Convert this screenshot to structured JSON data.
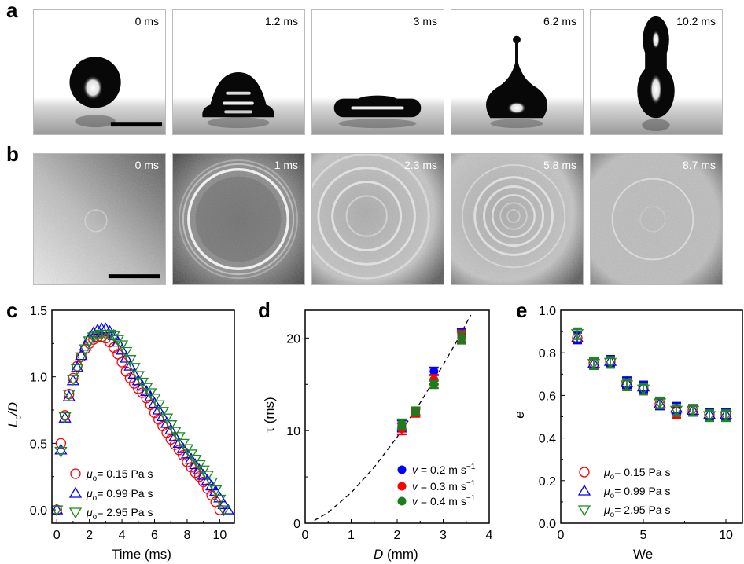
{
  "panel_letters": {
    "a": "a",
    "b": "b",
    "c": "c",
    "d": "d",
    "e": "e"
  },
  "photos": {
    "row_a": {
      "times": [
        "0 ms",
        "1.2 ms",
        "3 ms",
        "6.2 ms",
        "10.2 ms"
      ],
      "scale_bar": true
    },
    "row_b": {
      "times": [
        "0 ms",
        "1 ms",
        "2.3 ms",
        "5.8 ms",
        "8.7 ms"
      ],
      "scale_bar": true
    }
  },
  "chart_data": [
    {
      "type": "scatter",
      "panel": "c",
      "xlabel": "Time (ms)",
      "ylabel": {
        "main": "L",
        "sub": "c",
        "rest": "/D"
      },
      "xlim": [
        -0.3,
        10.9
      ],
      "ylim": [
        -0.1,
        1.5
      ],
      "xticks": [
        0,
        2,
        4,
        6,
        8,
        10
      ],
      "xtick_labels": [
        "0",
        "2",
        "4",
        "6",
        "8",
        "10"
      ],
      "yticks": [
        0,
        0.5,
        1.0,
        1.5
      ],
      "ytick_labels": [
        "0.0",
        "0.5",
        "1.0",
        "1.5"
      ],
      "grid": false,
      "legend_position": "bottom-left",
      "series": [
        {
          "name_symbol": "μ",
          "name_sub": "o",
          "name_rest": "= 0.15 Pa s",
          "marker": "circle",
          "color": "#ff0000",
          "x": [
            0,
            0.25,
            0.5,
            0.75,
            1,
            1.25,
            1.5,
            1.75,
            2,
            2.25,
            2.5,
            2.75,
            3,
            3.25,
            3.5,
            3.75,
            4,
            4.25,
            4.5,
            4.75,
            5,
            5.25,
            5.5,
            5.75,
            6,
            6.25,
            6.5,
            6.75,
            7,
            7.25,
            7.5,
            7.75,
            8,
            8.25,
            8.5,
            8.75,
            9,
            9.25,
            9.5,
            9.75,
            10
          ],
          "y": [
            0,
            0.5,
            0.71,
            0.87,
            0.99,
            1.08,
            1.15,
            1.21,
            1.25,
            1.28,
            1.3,
            1.3,
            1.29,
            1.26,
            1.22,
            1.17,
            1.11,
            1.04,
            0.99,
            0.95,
            0.91,
            0.88,
            0.84,
            0.79,
            0.73,
            0.68,
            0.63,
            0.58,
            0.53,
            0.49,
            0.45,
            0.41,
            0.36,
            0.32,
            0.28,
            0.25,
            0.21,
            0.16,
            0.11,
            0.06,
            0.0
          ]
        },
        {
          "name_symbol": "μ",
          "name_sub": "o",
          "name_rest": "= 0.99 Pa s",
          "marker": "triangle-up",
          "color": "#0000ff",
          "x": [
            0,
            0.25,
            0.5,
            0.75,
            1,
            1.25,
            1.5,
            1.75,
            2,
            2.25,
            2.5,
            2.75,
            3,
            3.25,
            3.5,
            3.75,
            4,
            4.25,
            4.5,
            4.75,
            5,
            5.25,
            5.5,
            5.75,
            6,
            6.25,
            6.5,
            6.75,
            7,
            7.25,
            7.5,
            7.75,
            8,
            8.25,
            8.5,
            8.75,
            9,
            9.25,
            9.5,
            9.75,
            10,
            10.25,
            10.5
          ],
          "y": [
            0,
            0.45,
            0.69,
            0.85,
            0.97,
            1.07,
            1.16,
            1.23,
            1.29,
            1.33,
            1.35,
            1.36,
            1.36,
            1.34,
            1.31,
            1.26,
            1.2,
            1.14,
            1.08,
            1.02,
            0.97,
            0.93,
            0.89,
            0.85,
            0.8,
            0.75,
            0.7,
            0.65,
            0.6,
            0.55,
            0.5,
            0.46,
            0.42,
            0.38,
            0.34,
            0.3,
            0.26,
            0.22,
            0.18,
            0.14,
            0.09,
            0.04,
            0.0
          ]
        },
        {
          "name_symbol": "μ",
          "name_sub": "o",
          "name_rest": "= 2.95 Pa s",
          "marker": "triangle-down",
          "color": "#1a8a1a",
          "x": [
            0,
            0.25,
            0.5,
            0.75,
            1,
            1.25,
            1.5,
            1.75,
            2,
            2.25,
            2.5,
            2.75,
            3,
            3.25,
            3.5,
            3.75,
            4,
            4.25,
            4.5,
            4.75,
            5,
            5.25,
            5.5,
            5.75,
            6,
            6.25,
            6.5,
            6.75,
            7,
            7.25,
            7.5,
            7.75,
            8,
            8.25,
            8.5,
            8.75,
            9,
            9.25,
            9.5,
            9.75,
            10,
            10.25
          ],
          "y": [
            0,
            0.44,
            0.7,
            0.87,
            0.98,
            1.06,
            1.15,
            1.21,
            1.27,
            1.3,
            1.31,
            1.32,
            1.32,
            1.32,
            1.31,
            1.28,
            1.24,
            1.19,
            1.13,
            1.07,
            1.01,
            0.96,
            0.92,
            0.88,
            0.84,
            0.79,
            0.74,
            0.69,
            0.64,
            0.59,
            0.55,
            0.5,
            0.46,
            0.42,
            0.38,
            0.34,
            0.3,
            0.26,
            0.21,
            0.15,
            0.08,
            0.0
          ]
        }
      ]
    },
    {
      "type": "scatter",
      "panel": "d",
      "xlabel": {
        "var": "D",
        "rest": " (mm)"
      },
      "ylabel": "τ (ms)",
      "xlim": [
        0,
        4
      ],
      "ylim": [
        0,
        23
      ],
      "xticks": [
        0,
        1,
        2,
        3,
        4
      ],
      "xtick_labels": [
        "0",
        "1",
        "2",
        "3",
        "4"
      ],
      "yticks": [
        0,
        10,
        20
      ],
      "ytick_labels": [
        "0",
        "10",
        "20"
      ],
      "grid": false,
      "legend_position": "bottom-right",
      "fit": {
        "style": "dashed",
        "color": "#000000",
        "x": [
          0.2,
          0.5,
          1,
          1.5,
          2,
          2.5,
          3,
          3.3,
          3.6
        ],
        "y": [
          0.29,
          1.16,
          3.29,
          6.04,
          9.3,
          13.0,
          17.1,
          19.7,
          22.5
        ]
      },
      "series": [
        {
          "name_var": "v",
          "name_rest": " = 0.2 m s",
          "name_sup": "−1",
          "marker": "dot",
          "color": "#0000ff",
          "x": [
            2.1,
            2.4,
            2.8,
            3.4
          ],
          "y": [
            10.5,
            12.1,
            16.4,
            20.3
          ],
          "err": [
            0.6,
            0.4,
            0.4,
            0.7
          ]
        },
        {
          "name_var": "v",
          "name_rest": " = 0.3 m s",
          "name_sup": "−1",
          "marker": "dot",
          "color": "#ff0000",
          "x": [
            2.1,
            2.4,
            2.8,
            3.4
          ],
          "y": [
            10.2,
            11.9,
            15.5,
            20.2
          ],
          "err": [
            0.6,
            0.4,
            0.5,
            0.6
          ]
        },
        {
          "name_var": "v",
          "name_rest": " = 0.4 m s",
          "name_sup": "−1",
          "marker": "dot",
          "color": "#1e7b1e",
          "x": [
            2.1,
            2.4,
            2.8,
            3.4
          ],
          "y": [
            10.7,
            12.1,
            15.0,
            20.0
          ],
          "err": [
            0.5,
            0.4,
            0.4,
            0.6
          ]
        }
      ]
    },
    {
      "type": "scatter",
      "panel": "e",
      "xlabel": "We",
      "ylabel": "e",
      "xlim": [
        0,
        11
      ],
      "ylim": [
        0,
        1
      ],
      "xticks": [
        0,
        5,
        10
      ],
      "xtick_labels": [
        "0",
        "5",
        "10"
      ],
      "yticks": [
        0,
        0.2,
        0.4,
        0.6,
        0.8,
        1.0
      ],
      "ytick_labels": [
        "0.0",
        "0.2",
        "0.4",
        "0.6",
        "0.8",
        "1.0"
      ],
      "grid": false,
      "legend_position": "bottom-left",
      "series": [
        {
          "name_symbol": "μ",
          "name_sub": "o",
          "name_rest": "= 0.15 Pa s",
          "marker": "circle",
          "color": "#ff0000",
          "x": [
            1,
            2,
            3,
            4,
            5,
            6,
            7,
            8,
            9,
            10
          ],
          "y": [
            0.87,
            0.75,
            0.76,
            0.65,
            0.63,
            0.56,
            0.52,
            0.53,
            0.51,
            0.51
          ],
          "err": [
            0.025,
            0.025,
            0.025,
            0.025,
            0.025,
            0.025,
            0.025,
            0.025,
            0.025,
            0.025
          ]
        },
        {
          "name_symbol": "μ",
          "name_sub": "o",
          "name_rest": "= 0.99 Pa s",
          "marker": "triangle-up",
          "color": "#0000ff",
          "x": [
            1,
            2,
            3,
            4,
            5,
            6,
            7,
            8,
            9,
            10
          ],
          "y": [
            0.87,
            0.75,
            0.76,
            0.66,
            0.64,
            0.56,
            0.54,
            0.53,
            0.51,
            0.51
          ],
          "err": [
            0.025,
            0.025,
            0.025,
            0.025,
            0.025,
            0.025,
            0.025,
            0.025,
            0.025,
            0.025
          ]
        },
        {
          "name_symbol": "μ",
          "name_sub": "o",
          "name_rest": "= 2.95 Pa s",
          "marker": "triangle-down",
          "color": "#1a8a1a",
          "x": [
            1,
            2,
            3,
            4,
            5,
            6,
            7,
            8,
            9,
            10
          ],
          "y": [
            0.89,
            0.75,
            0.755,
            0.65,
            0.63,
            0.565,
            0.53,
            0.53,
            0.505,
            0.505
          ],
          "err": [
            0.025,
            0.025,
            0.025,
            0.025,
            0.025,
            0.025,
            0.025,
            0.025,
            0.025,
            0.025
          ]
        }
      ]
    }
  ]
}
